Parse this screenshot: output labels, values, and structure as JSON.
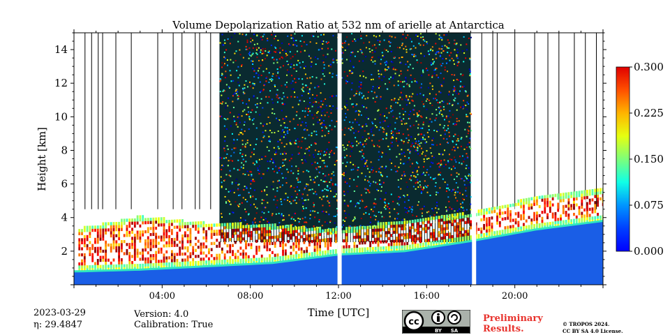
{
  "chart_data": {
    "type": "heatmap",
    "title": "Volume Depolarization Ratio at 532 nm of arielle at Antarctica",
    "xlabel": "Time [UTC]",
    "ylabel": "Height [km]",
    "xlim_hours": [
      0,
      24
    ],
    "ylim_km": [
      0,
      15
    ],
    "x_ticks": [
      {
        "hour": 4,
        "label": "04:00"
      },
      {
        "hour": 8,
        "label": "08:00"
      },
      {
        "hour": 12,
        "label": "12:00"
      },
      {
        "hour": 16,
        "label": "16:00"
      },
      {
        "hour": 20,
        "label": "20:00"
      }
    ],
    "y_ticks": [
      {
        "km": 2,
        "label": "2"
      },
      {
        "km": 4,
        "label": "4"
      },
      {
        "km": 6,
        "label": "6"
      },
      {
        "km": 8,
        "label": "8"
      },
      {
        "km": 10,
        "label": "10"
      },
      {
        "km": 12,
        "label": "12"
      },
      {
        "km": 14,
        "label": "14"
      }
    ],
    "colorbar": {
      "colormap": "jet",
      "range": [
        0,
        0.3
      ],
      "ticks": [
        {
          "value": 0.0,
          "label": "0.000"
        },
        {
          "value": 0.075,
          "label": "0.075"
        },
        {
          "value": 0.15,
          "label": "0.150"
        },
        {
          "value": 0.225,
          "label": "0.225"
        },
        {
          "value": 0.3,
          "label": "0.300"
        }
      ]
    },
    "data_gaps_hours": [
      12.05,
      18.15
    ],
    "boundary_layer_top_km": [
      {
        "hour": 0.3,
        "km": 0.8
      },
      {
        "hour": 3.0,
        "km": 0.9
      },
      {
        "hour": 6.0,
        "km": 1.1
      },
      {
        "hour": 9.0,
        "km": 1.3
      },
      {
        "hour": 12.0,
        "km": 1.8
      },
      {
        "hour": 15.0,
        "km": 2.0
      },
      {
        "hour": 18.0,
        "km": 2.6
      },
      {
        "hour": 21.0,
        "km": 3.3
      },
      {
        "hour": 24.0,
        "km": 3.8
      }
    ],
    "cloud_top_km": [
      {
        "hour": 0.3,
        "km": 3.3
      },
      {
        "hour": 3.0,
        "km": 4.0
      },
      {
        "hour": 6.0,
        "km": 3.6
      },
      {
        "hour": 9.0,
        "km": 3.5
      },
      {
        "hour": 12.0,
        "km": 3.2
      },
      {
        "hour": 15.0,
        "km": 3.8
      },
      {
        "hour": 18.0,
        "km": 4.2
      },
      {
        "hour": 21.0,
        "km": 5.2
      },
      {
        "hour": 24.0,
        "km": 5.6
      }
    ],
    "noise_region_hours": [
      6.6,
      18.0
    ]
  },
  "footer": {
    "date": "2023-03-29",
    "eta": "η: 29.4847",
    "version": "Version: 4.0",
    "calibration": "Calibration: True",
    "cc_badge": [
      "BY",
      "SA"
    ],
    "preliminary_line1": "Preliminary",
    "preliminary_line2": "Results.",
    "copyright_line1": "© TROPOS 2024.",
    "copyright_line2": "CC BY SA 4.0 License."
  },
  "colors": {
    "preliminary": "#e8322c",
    "colormap_stops": [
      "#00007f",
      "#0000ff",
      "#007fff",
      "#00ffff",
      "#7fff7f",
      "#ffff00",
      "#ff7f00",
      "#ff0000",
      "#7f0000"
    ]
  }
}
